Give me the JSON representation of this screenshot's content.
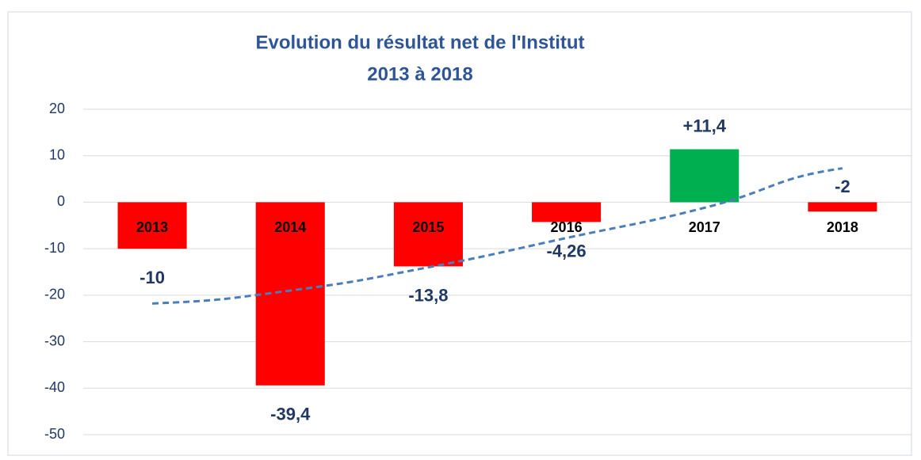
{
  "chart_data": {
    "type": "bar",
    "title": [
      "Evolution du résultat net de l'Institut",
      "2013 à 2018"
    ],
    "categories": [
      "2013",
      "2014",
      "2015",
      "2016",
      "2017",
      "2018"
    ],
    "values": [
      -10,
      -39.4,
      -13.8,
      -4.26,
      11.4,
      -2
    ],
    "value_labels": [
      "-10",
      "-39,4",
      "-13,8",
      "-4,26",
      "+11,4",
      "-2"
    ],
    "colors": [
      "#ff0000",
      "#ff0000",
      "#ff0000",
      "#ff0000",
      "#00b050",
      "#ff0000"
    ],
    "trendline": {
      "values": [
        -21.8,
        -19,
        -14,
        -7.7,
        -1.2,
        7.3
      ],
      "color": "#4a7ebb",
      "dashed": true
    },
    "ylim": [
      -50,
      20
    ],
    "yticks": [
      -50,
      -40,
      -30,
      -20,
      -10,
      0,
      10,
      20
    ],
    "grid": true
  }
}
